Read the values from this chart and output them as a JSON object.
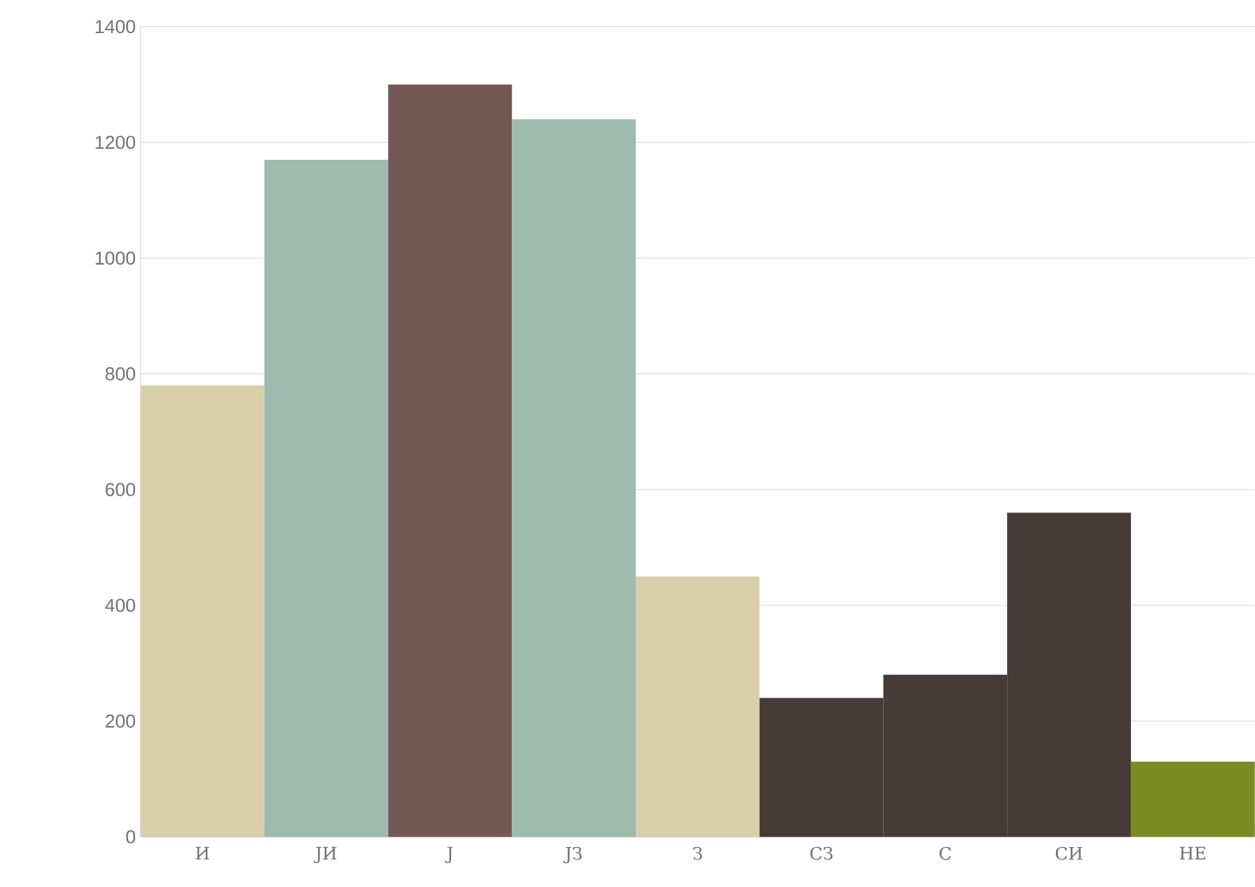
{
  "chart_data": {
    "type": "bar",
    "categories": [
      "И",
      "ЈИ",
      "Ј",
      "ЈЗ",
      "З",
      "СЗ",
      "С",
      "СИ",
      "НЕ"
    ],
    "values": [
      780,
      1170,
      1300,
      1240,
      450,
      240,
      280,
      560,
      130
    ],
    "colors": [
      "#d8d0aa",
      "#9dbbae",
      "#735853",
      "#9dbbae",
      "#d8d0aa",
      "#463b37",
      "#463b37",
      "#463b37",
      "#7b8c23"
    ],
    "ylim": [
      0,
      1400
    ],
    "yticks": [
      0,
      200,
      400,
      600,
      800,
      1000,
      1200,
      1400
    ],
    "grid": "y"
  }
}
